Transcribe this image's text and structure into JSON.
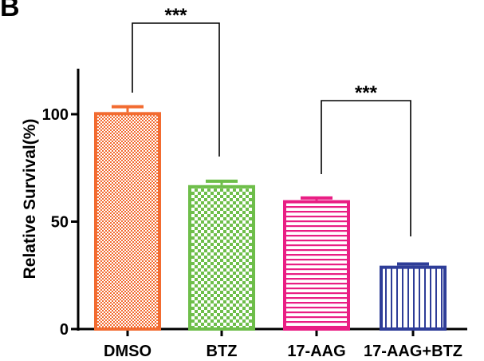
{
  "panel_label": "B",
  "chart_data": {
    "type": "bar",
    "title": "",
    "xlabel": "",
    "ylabel": "Relative Survival(%)",
    "ylim": [
      0,
      125
    ],
    "yticks": [
      0,
      50,
      100
    ],
    "grid": false,
    "categories": [
      "DMSO",
      "BTZ",
      "17-AAG",
      "17-AAG+BTZ"
    ],
    "values": [
      101,
      67,
      60,
      29.5
    ],
    "errors": [
      2.5,
      1.8,
      1.0,
      0.8
    ],
    "bars": [
      {
        "category": "DMSO",
        "value": 101,
        "error": 2.5,
        "color": "#f26b30",
        "pattern": "dots"
      },
      {
        "category": "BTZ",
        "value": 67,
        "error": 1.8,
        "color": "#6ebe4a",
        "pattern": "checker"
      },
      {
        "category": "17-AAG",
        "value": 60,
        "error": 1.0,
        "color": "#e91e84",
        "pattern": "horizontal-lines"
      },
      {
        "category": "17-AAG+BTZ",
        "value": 29.5,
        "error": 0.8,
        "color": "#2e3d98",
        "pattern": "vertical-lines"
      }
    ],
    "significance": [
      {
        "from": "DMSO",
        "to": "BTZ",
        "label": "***"
      },
      {
        "from": "17-AAG",
        "to": "17-AAG+BTZ",
        "label": "***"
      }
    ]
  }
}
